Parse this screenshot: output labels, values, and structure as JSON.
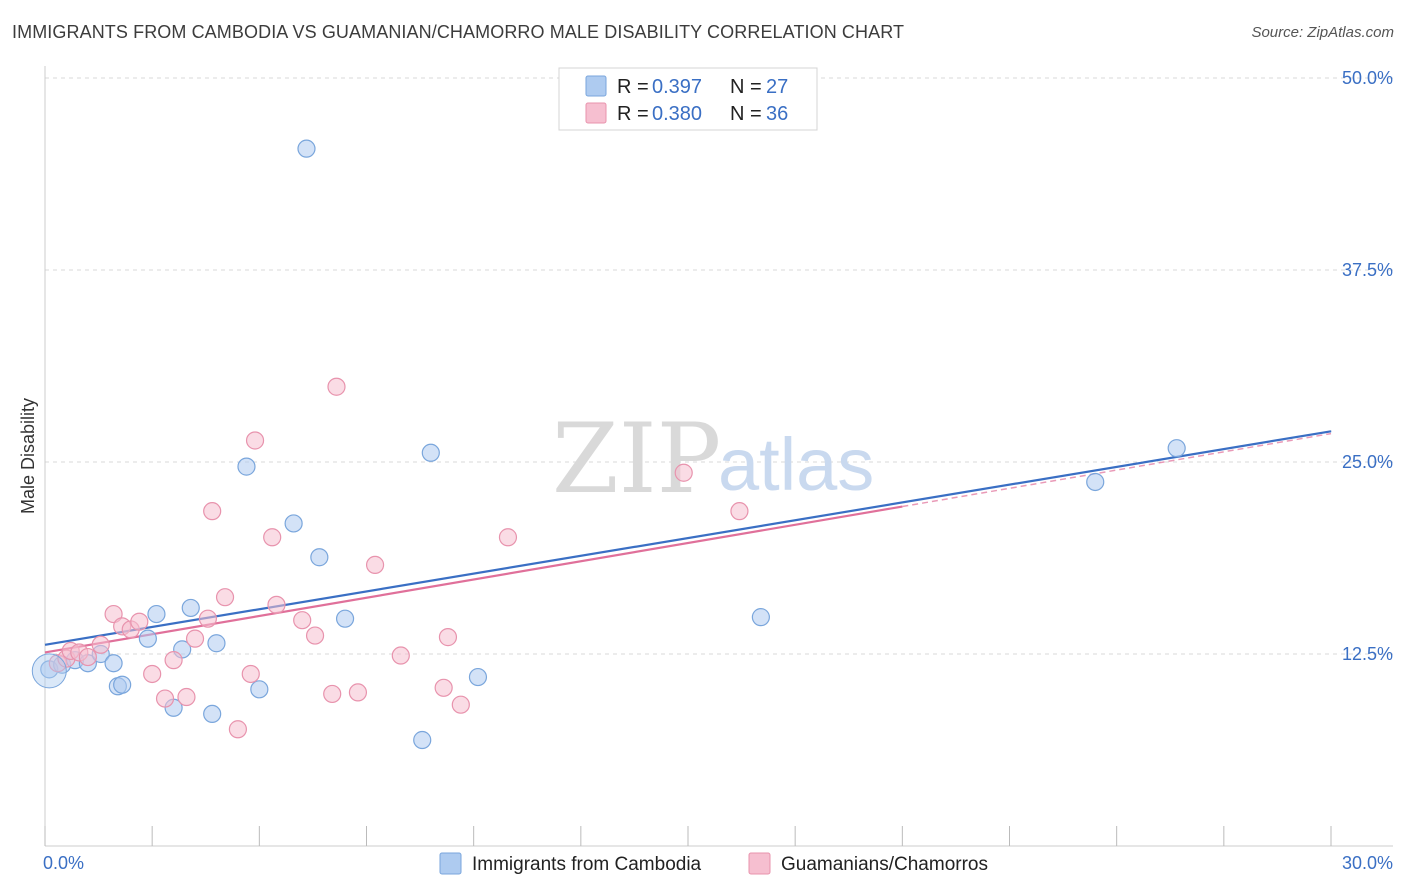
{
  "title": "IMMIGRANTS FROM CAMBODIA VS GUAMANIAN/CHAMORRO MALE DISABILITY CORRELATION CHART",
  "source": "Source: ZipAtlas.com",
  "watermark": {
    "zip": "ZIP",
    "atlas": "atlas"
  },
  "colors": {
    "blue_fill": "#aecbf0",
    "blue_stroke": "#7aa6dc",
    "blue_line": "#3a6fc4",
    "pink_fill": "#f6bfd0",
    "pink_stroke": "#e893ad",
    "pink_line": "#e0709a",
    "grid": "#d8d8d8",
    "axis_text": "#3a6fc4"
  },
  "legend": {
    "r_label": "R =",
    "n_label": "N =",
    "entries": [
      {
        "r": "0.397",
        "n": "27",
        "color": "blue"
      },
      {
        "r": "0.380",
        "n": "36",
        "color": "pink"
      }
    ]
  },
  "chart_data": {
    "type": "scatter",
    "ylabel": "Male Disability",
    "xlim": [
      0,
      30
    ],
    "ylim": [
      0,
      50
    ],
    "x_tick_labels": [
      "0.0%",
      "30.0%"
    ],
    "y_ticks": [
      12.5,
      25.0,
      37.5,
      50.0
    ],
    "y_tick_labels": [
      "12.5%",
      "25.0%",
      "37.5%",
      "50.0%"
    ],
    "grid": true,
    "legend_position": "top-center",
    "series": [
      {
        "name": "Immigrants from Cambodia",
        "color": "blue",
        "points": [
          [
            0.1,
            11.5
          ],
          [
            0.4,
            11.8
          ],
          [
            0.7,
            12.1
          ],
          [
            1.0,
            11.9
          ],
          [
            1.3,
            12.5
          ],
          [
            1.6,
            11.9
          ],
          [
            1.7,
            10.4
          ],
          [
            1.8,
            10.5
          ],
          [
            2.4,
            13.5
          ],
          [
            2.6,
            15.1
          ],
          [
            3.0,
            9.0
          ],
          [
            3.2,
            12.8
          ],
          [
            3.4,
            15.5
          ],
          [
            3.9,
            8.6
          ],
          [
            4.0,
            13.2
          ],
          [
            4.7,
            24.7
          ],
          [
            5.0,
            10.2
          ],
          [
            5.8,
            21.0
          ],
          [
            6.1,
            45.4
          ],
          [
            6.4,
            18.8
          ],
          [
            7.0,
            14.8
          ],
          [
            8.8,
            6.9
          ],
          [
            9.0,
            25.6
          ],
          [
            10.1,
            11.0
          ],
          [
            16.7,
            14.9
          ],
          [
            24.5,
            23.7
          ],
          [
            26.4,
            25.9
          ]
        ],
        "trend": {
          "x0": 0,
          "y0": 13.1,
          "x1": 30,
          "y1": 27.0
        }
      },
      {
        "name": "Guamanians/Chamorros",
        "color": "pink",
        "points": [
          [
            0.3,
            11.9
          ],
          [
            0.5,
            12.2
          ],
          [
            0.6,
            12.7
          ],
          [
            0.8,
            12.6
          ],
          [
            1.0,
            12.3
          ],
          [
            1.3,
            13.1
          ],
          [
            1.6,
            15.1
          ],
          [
            1.8,
            14.3
          ],
          [
            2.0,
            14.1
          ],
          [
            2.2,
            14.6
          ],
          [
            2.5,
            11.2
          ],
          [
            2.8,
            9.6
          ],
          [
            3.0,
            12.1
          ],
          [
            3.3,
            9.7
          ],
          [
            3.5,
            13.5
          ],
          [
            3.8,
            14.8
          ],
          [
            3.9,
            21.8
          ],
          [
            4.2,
            16.2
          ],
          [
            4.5,
            7.6
          ],
          [
            4.8,
            11.2
          ],
          [
            4.9,
            26.4
          ],
          [
            5.3,
            20.1
          ],
          [
            5.4,
            15.7
          ],
          [
            6.0,
            14.7
          ],
          [
            6.3,
            13.7
          ],
          [
            6.7,
            9.9
          ],
          [
            6.8,
            29.9
          ],
          [
            7.3,
            10.0
          ],
          [
            7.7,
            18.3
          ],
          [
            8.3,
            12.4
          ],
          [
            9.3,
            10.3
          ],
          [
            9.4,
            13.6
          ],
          [
            9.7,
            9.2
          ],
          [
            10.8,
            20.1
          ],
          [
            14.9,
            24.3
          ],
          [
            16.2,
            21.8
          ]
        ],
        "trend": {
          "x0": 0,
          "y0": 12.6,
          "x1": 20.0,
          "y1": 22.1
        }
      }
    ]
  }
}
